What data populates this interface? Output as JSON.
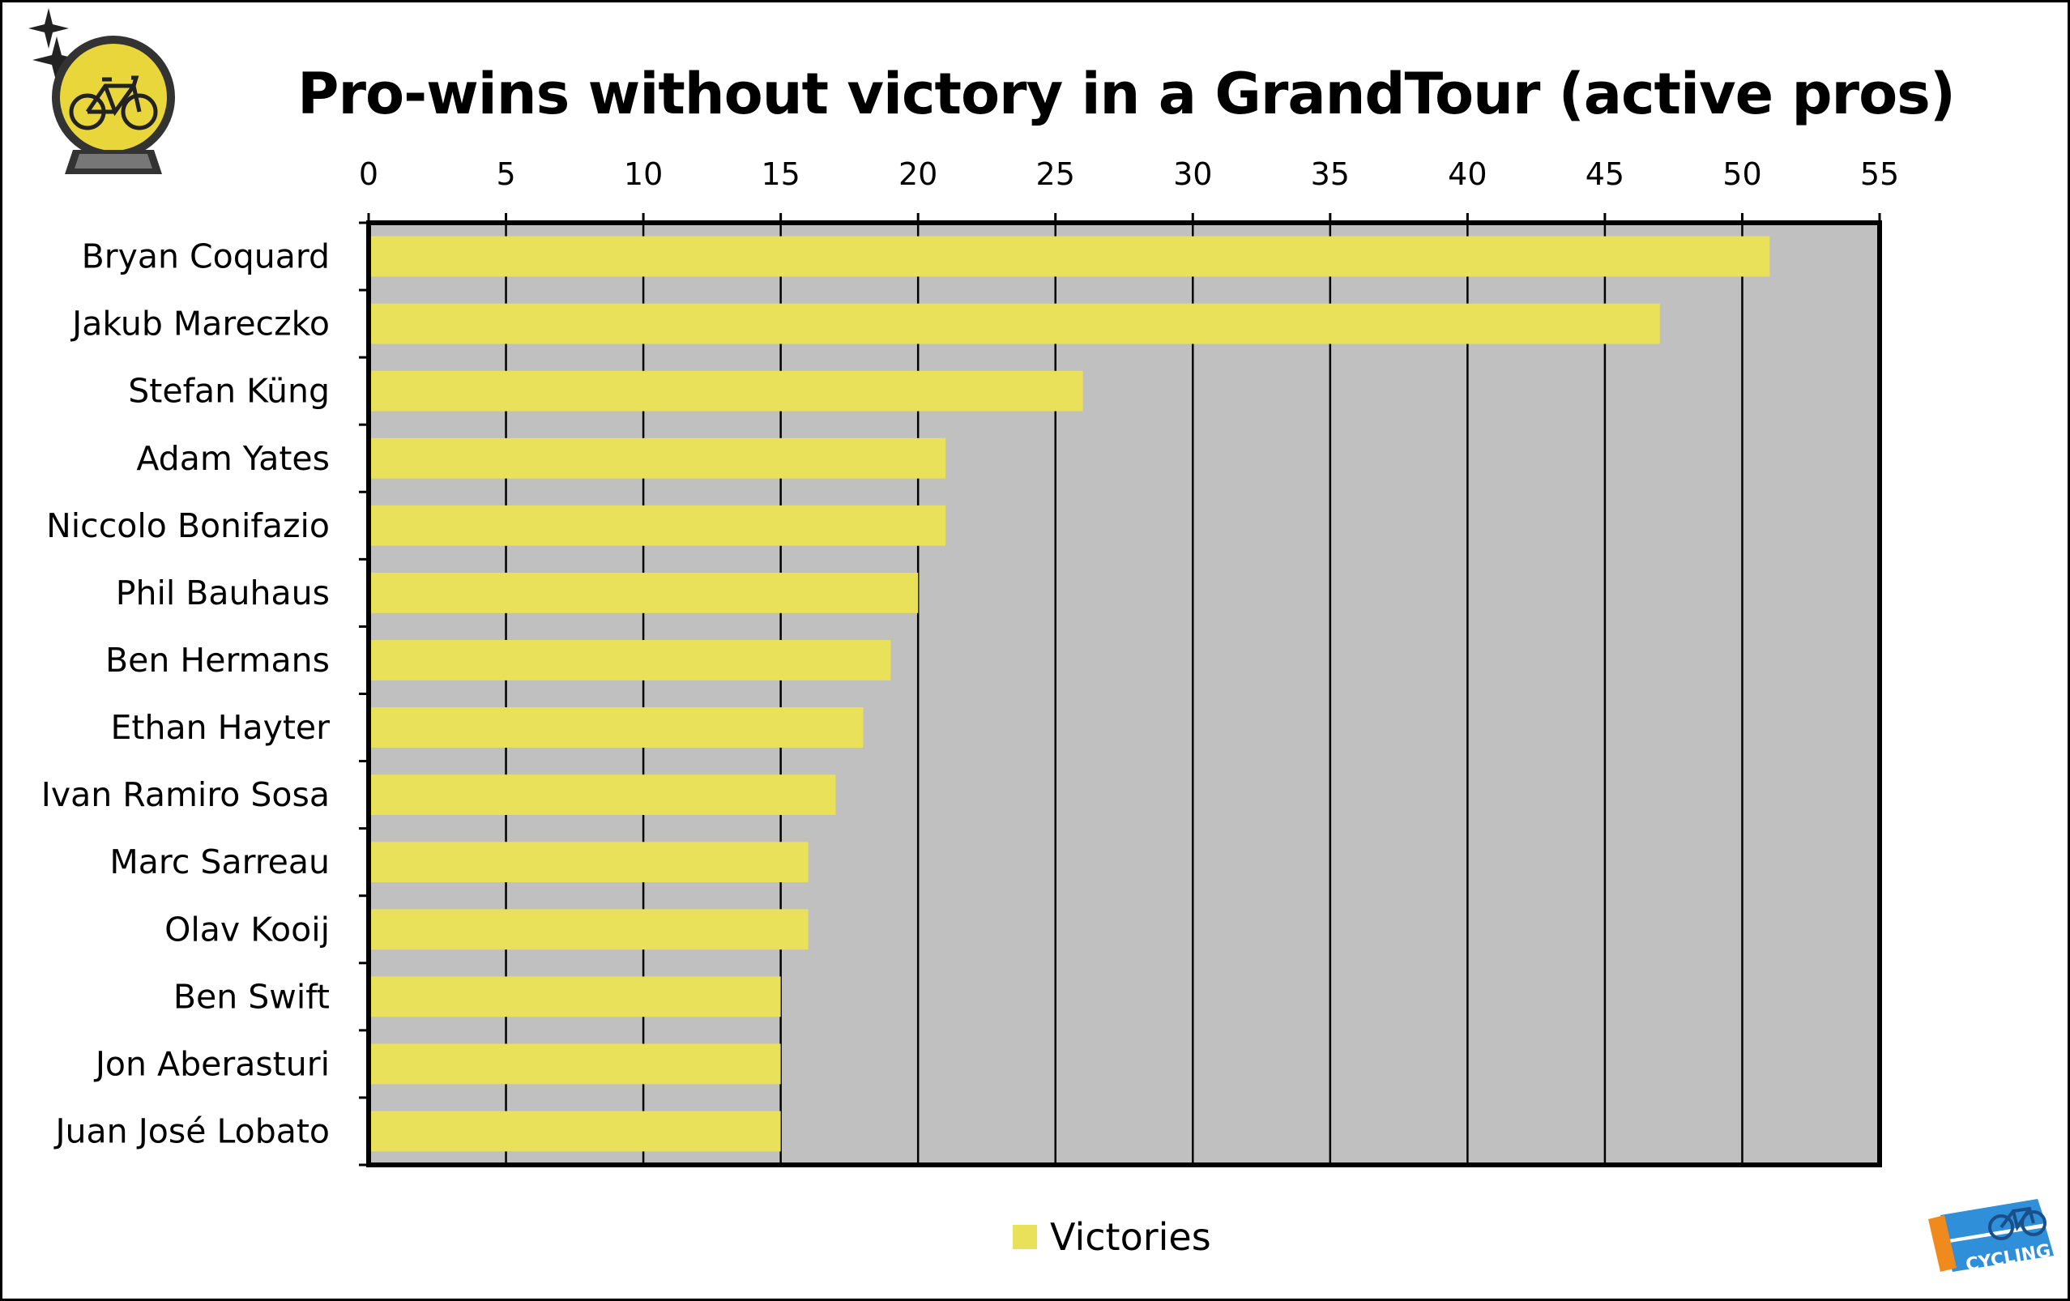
{
  "chart_data": {
    "type": "bar",
    "orientation": "horizontal",
    "title": "Pro-wins without victory in a GrandTour (active pros)",
    "categories": [
      "Bryan Coquard",
      "Jakub Mareczko",
      "Stefan Küng",
      "Adam Yates",
      "Niccolo Bonifazio",
      "Phil Bauhaus",
      "Ben Hermans",
      "Ethan Hayter",
      "Ivan Ramiro Sosa",
      "Marc Sarreau",
      "Olav Kooij",
      "Ben Swift",
      "Jon Aberasturi",
      "Juan José Lobato"
    ],
    "series": [
      {
        "name": "Victories",
        "values": [
          51,
          47,
          26,
          21,
          21,
          20,
          19,
          18,
          17,
          16,
          16,
          15,
          15,
          15
        ]
      }
    ],
    "xlim": [
      0,
      55
    ],
    "xticks": [
      "0",
      "5",
      "10",
      "15",
      "20",
      "25",
      "30",
      "35",
      "40",
      "45",
      "50",
      "55"
    ],
    "xaxis_position": "top",
    "grid": true,
    "legend_position": "bottom-center",
    "colors": {
      "bar": "#e9e15a",
      "plot_bg": "#c0c0c0",
      "grid": "#000000"
    }
  },
  "icons": {
    "top_left": "bicycle-crystal-ball-icon",
    "bottom_right": "cycling-statistics-logo"
  }
}
